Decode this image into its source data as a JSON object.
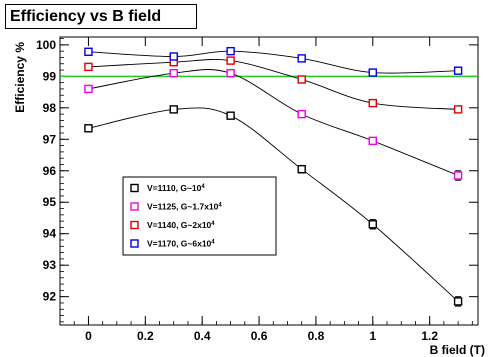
{
  "chart_data": {
    "type": "line",
    "title": "Efficiency vs B field",
    "xlabel": "B field (T)",
    "ylabel": "Efficiency %",
    "xlim": [
      -0.1,
      1.37
    ],
    "ylim": [
      91.1,
      100.25
    ],
    "x_ticks": [
      "0",
      "0.2",
      "0.4",
      "0.6",
      "0.8",
      "1",
      "1.2"
    ],
    "y_ticks": [
      "92",
      "93",
      "94",
      "95",
      "96",
      "97",
      "98",
      "99",
      "100"
    ],
    "grid": false,
    "legend_position": "lower-left",
    "reference_line": {
      "y": 99.0,
      "color": "#22cc22"
    },
    "series": [
      {
        "name": "V=1110, G~10",
        "name_sup": "4",
        "color": "#000000",
        "x": [
          0,
          0.3,
          0.5,
          0.75,
          1.0,
          1.3
        ],
        "y": [
          97.35,
          97.95,
          97.75,
          96.05,
          94.3,
          91.85
        ],
        "yerr": [
          0.05,
          0.05,
          0.05,
          0.12,
          0.15,
          0.15
        ]
      },
      {
        "name": "V=1125, G~1.7x10",
        "name_sup": "4",
        "color": "#ee00ee",
        "x": [
          0,
          0.3,
          0.5,
          0.75,
          1.0,
          1.3
        ],
        "y": [
          98.6,
          99.1,
          99.1,
          97.8,
          96.95,
          95.85
        ],
        "yerr": [
          0.04,
          0.04,
          0.04,
          0.08,
          0.08,
          0.15
        ]
      },
      {
        "name": "V=1140, G~2x10",
        "name_sup": "4",
        "color": "#dd0000",
        "x": [
          0,
          0.3,
          0.5,
          0.75,
          1.0,
          1.3
        ],
        "y": [
          99.3,
          99.45,
          99.5,
          98.9,
          98.15,
          97.95
        ],
        "yerr": [
          0.03,
          0.03,
          0.03,
          0.05,
          0.05,
          0.06
        ]
      },
      {
        "name": "V=1170, G~6x10",
        "name_sup": "4",
        "color": "#0000dd",
        "x": [
          0,
          0.3,
          0.5,
          0.75,
          1.0,
          1.3
        ],
        "y": [
          99.78,
          99.63,
          99.8,
          99.57,
          99.12,
          99.18
        ],
        "yerr": [
          0.03,
          0.03,
          0.03,
          0.04,
          0.04,
          0.05
        ]
      }
    ]
  }
}
